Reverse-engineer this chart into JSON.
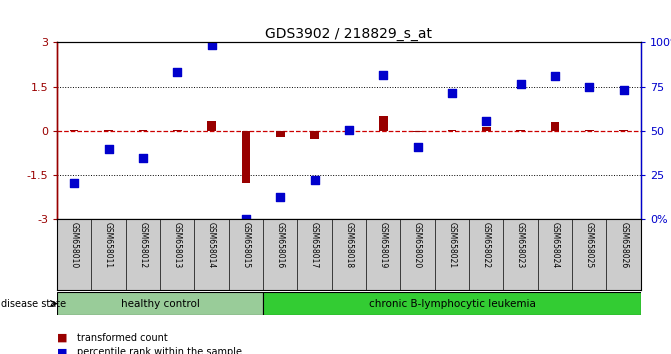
{
  "title": "GDS3902 / 218829_s_at",
  "samples": [
    "GSM658010",
    "GSM658011",
    "GSM658012",
    "GSM658013",
    "GSM658014",
    "GSM658015",
    "GSM658016",
    "GSM658017",
    "GSM658018",
    "GSM658019",
    "GSM658020",
    "GSM658021",
    "GSM658022",
    "GSM658023",
    "GSM658024",
    "GSM658025",
    "GSM658026"
  ],
  "transformed_count": [
    0.02,
    0.02,
    0.03,
    0.05,
    0.35,
    -1.75,
    -0.22,
    -0.28,
    0.02,
    0.5,
    -0.05,
    0.05,
    0.12,
    0.05,
    0.3,
    0.02,
    0.05
  ],
  "percentile_rank": [
    -1.75,
    -0.6,
    -0.9,
    2.0,
    2.9,
    -3.0,
    -2.25,
    -1.65,
    0.02,
    1.9,
    -0.55,
    1.3,
    0.35,
    1.6,
    1.85,
    1.5,
    1.4
  ],
  "bar_color_red": "#990000",
  "bar_color_blue": "#0000cc",
  "dotted_line_color": "#cc0000",
  "background_plot": "#ffffff",
  "background_label": "#cccccc",
  "healthy_control_color": "#99cc99",
  "leukemia_color": "#33cc33",
  "n_healthy": 6,
  "n_leukemia": 11,
  "ylim": [
    -3,
    3
  ],
  "yticks_left": [
    -3,
    -1.5,
    0,
    1.5,
    3
  ],
  "ytick_labels_left": [
    "-3",
    "-1.5",
    "0",
    "1.5",
    "3"
  ],
  "ytick_labels_right": [
    "0%",
    "25",
    "50",
    "75",
    "100%"
  ],
  "disease_state_label": "disease state",
  "healthy_label": "healthy control",
  "leukemia_label": "chronic B-lymphocytic leukemia",
  "legend_red": "transformed count",
  "legend_blue": "percentile rank within the sample"
}
